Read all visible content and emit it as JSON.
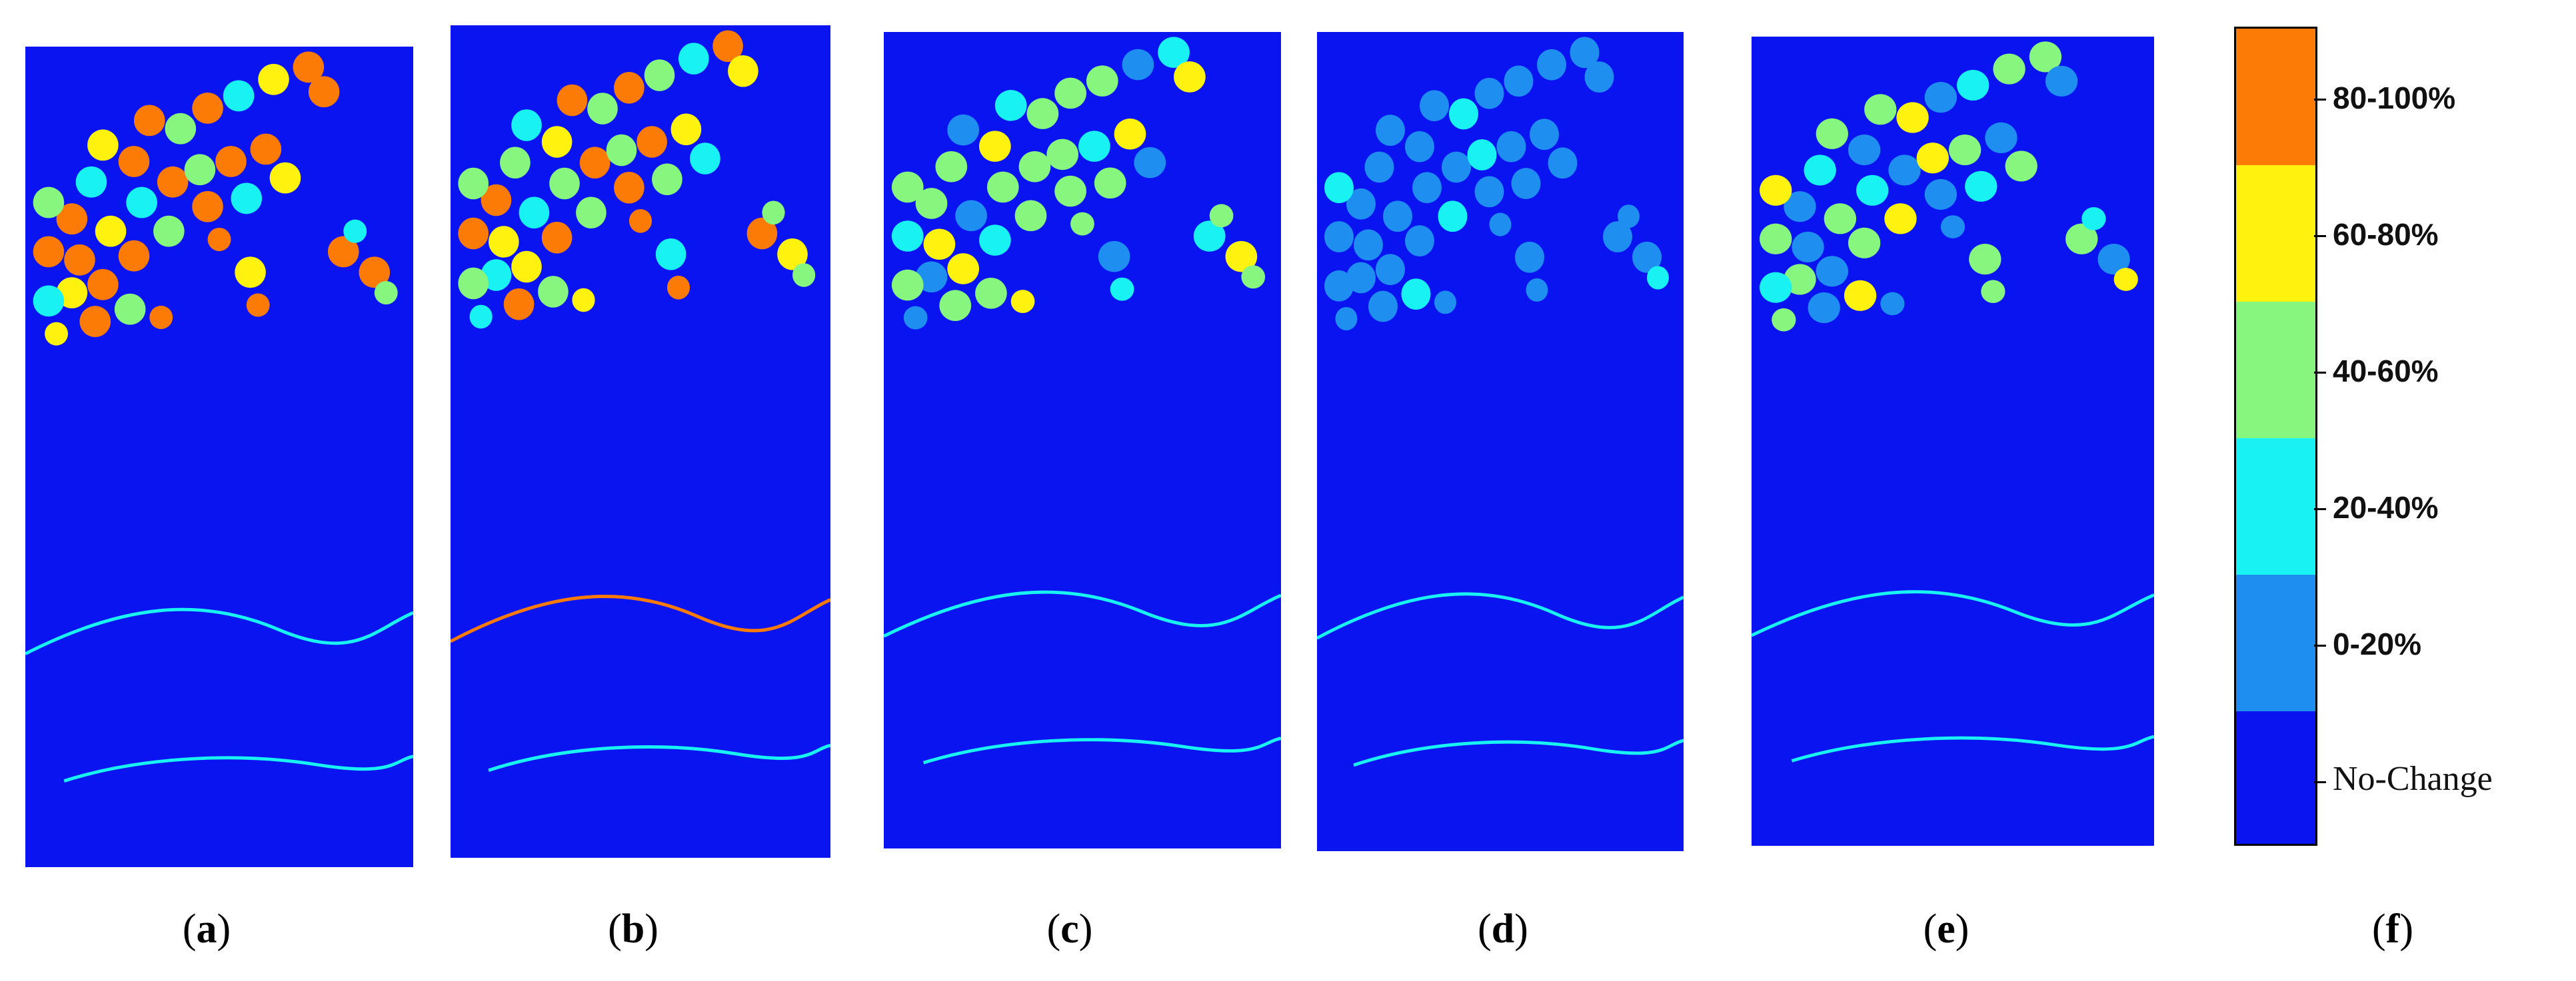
{
  "colors": {
    "no_change": "#0a14f0",
    "p0_20": "#1e8ef0",
    "p20_40": "#18f2f2",
    "p40_60": "#86f67e",
    "p60_80": "#fff20e",
    "p80_100": "#fc7a06"
  },
  "panels": [
    {
      "caption": "a",
      "scheme": "orange"
    },
    {
      "caption": "b",
      "scheme": "mixed"
    },
    {
      "caption": "c",
      "scheme": "green"
    },
    {
      "caption": "d",
      "scheme": "lightblue"
    },
    {
      "caption": "e",
      "scheme": "greenmix"
    }
  ],
  "legend": {
    "caption": "f",
    "classes": [
      {
        "label": "80-100%",
        "color_key": "p80_100"
      },
      {
        "label": "60-80%",
        "color_key": "p60_80"
      },
      {
        "label": "40-60%",
        "color_key": "p40_60"
      },
      {
        "label": "20-40%",
        "color_key": "p20_40"
      },
      {
        "label": "0-20%",
        "color_key": "p0_20"
      },
      {
        "label": "No-Change",
        "color_key": "no_change"
      }
    ]
  }
}
